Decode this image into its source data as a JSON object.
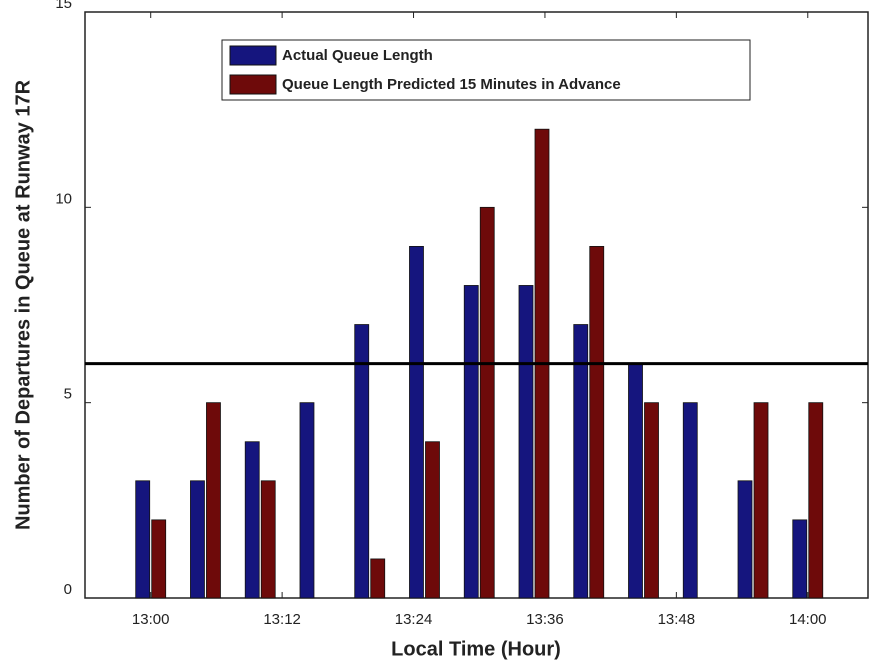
{
  "chart_data": {
    "type": "bar",
    "x": [
      0,
      5,
      10,
      15,
      20,
      25,
      30,
      35,
      40,
      45,
      50,
      55,
      60
    ],
    "series": [
      {
        "name": "Actual Queue Length",
        "color": "#15157e",
        "values": [
          3,
          3,
          4,
          5,
          7,
          9,
          8,
          8,
          7,
          6,
          5,
          3,
          2
        ]
      },
      {
        "name": "Queue Length Predicted 15 Minutes in Advance",
        "color": "#6e0a0a",
        "values": [
          2,
          5,
          3,
          0,
          1,
          4,
          10,
          12,
          9,
          5,
          0,
          5,
          5
        ]
      }
    ],
    "reference_line": 6,
    "xlabel": "Local Time (Hour)",
    "ylabel": "Number of Departures in Queue at Runway 17R",
    "xlim": [
      -6,
      65.5
    ],
    "xticks": [
      {
        "value": 0,
        "label": "13:00"
      },
      {
        "value": 12,
        "label": "13:12"
      },
      {
        "value": 24,
        "label": "13:24"
      },
      {
        "value": 36,
        "label": "13:36"
      },
      {
        "value": 48,
        "label": "13:48"
      },
      {
        "value": 60,
        "label": "14:00"
      }
    ],
    "ylim": [
      0,
      15
    ],
    "yticks": [
      0,
      5,
      10,
      15
    ],
    "legend": "top"
  }
}
